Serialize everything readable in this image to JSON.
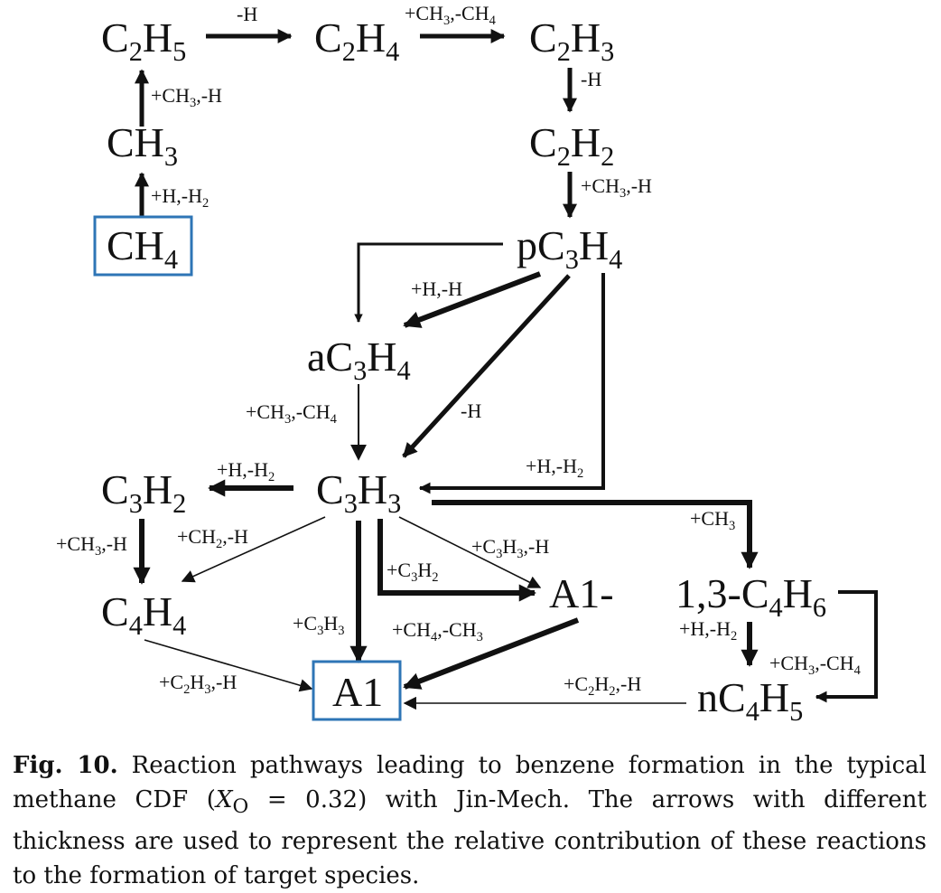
{
  "species": {
    "c2h5": {
      "base": "C",
      "s1": "2",
      "m": "H",
      "s2": "5"
    },
    "c2h4": {
      "base": "C",
      "s1": "2",
      "m": "H",
      "s2": "4"
    },
    "c2h3": {
      "base": "C",
      "s1": "2",
      "m": "H",
      "s2": "3"
    },
    "ch3": {
      "base": "CH",
      "s1": "3"
    },
    "c2h2": {
      "base": "C",
      "s1": "2",
      "m": "H",
      "s2": "2"
    },
    "ch4": {
      "base": "CH",
      "s1": "4"
    },
    "pc3h4": {
      "base": "pC",
      "s1": "3",
      "m": "H",
      "s2": "4"
    },
    "ac3h4": {
      "base": "aC",
      "s1": "3",
      "m": "H",
      "s2": "4"
    },
    "c3h2": {
      "base": "C",
      "s1": "3",
      "m": "H",
      "s2": "2"
    },
    "c3h3": {
      "base": "C",
      "s1": "3",
      "m": "H",
      "s2": "3"
    },
    "c4h4": {
      "base": "C",
      "s1": "4",
      "m": "H",
      "s2": "4"
    },
    "a1minus": {
      "base": "A1-"
    },
    "c4h6": {
      "base": "1,3-C",
      "s1": "4",
      "m": "H",
      "s2": "6"
    },
    "a1": {
      "base": "A1"
    },
    "nc4h5": {
      "base": "nC",
      "s1": "4",
      "m": "H",
      "s2": "5"
    }
  },
  "labels": {
    "c2h5_c2h4": {
      "parts": [
        "-H"
      ]
    },
    "c2h4_c2h3": {
      "parts": [
        "+CH",
        "3",
        ",-CH",
        "4"
      ]
    },
    "ch3_c2h5": {
      "parts": [
        "+CH",
        "3",
        ",-H"
      ]
    },
    "c2h3_c2h2": {
      "parts": [
        "-H"
      ]
    },
    "ch4_ch3": {
      "parts": [
        "+H,-H",
        "2"
      ]
    },
    "c2h2_pc3h4": {
      "parts": [
        "+CH",
        "3",
        ",-H"
      ]
    },
    "pc3h4_ac3h4": {
      "parts": [
        "+H,-H"
      ]
    },
    "ac3h4_c3h3": {
      "parts": [
        "+CH",
        "3",
        ",-CH",
        "4"
      ]
    },
    "pc3h4_c3h3_diag": {
      "parts": [
        "-H"
      ]
    },
    "c3h3_c3h2": {
      "parts": [
        "+H,-H",
        "2"
      ]
    },
    "pc3h4_c3h3_loop": {
      "parts": [
        "+H,-H",
        "2"
      ]
    },
    "c3h3_c4h6": {
      "parts": [
        "+CH",
        "3"
      ]
    },
    "c3h2_c4h4": {
      "parts": [
        "+CH",
        "3",
        ",-H"
      ]
    },
    "c3h3_c4h4": {
      "parts": [
        "+CH",
        "2",
        ",-H"
      ]
    },
    "c3h3_a1minus_thin": {
      "parts": [
        "+C",
        "3",
        "H",
        "3",
        ",-H"
      ]
    },
    "c3h3_a1minus": {
      "parts": [
        "+C",
        "3",
        "H",
        "2"
      ]
    },
    "c3h3_a1": {
      "parts": [
        "+C",
        "3",
        "H",
        "3"
      ]
    },
    "a1minus_a1": {
      "parts": [
        "+CH",
        "4",
        ",-CH",
        "3"
      ]
    },
    "c4h6_nc4h5": {
      "parts": [
        "+H,-H",
        "2"
      ]
    },
    "c4h6_nc4h5_loop": {
      "parts": [
        "+CH",
        "3",
        ",-CH",
        "4"
      ]
    },
    "c4h4_a1": {
      "parts": [
        "+C",
        "2",
        "H",
        "3",
        ",-H"
      ]
    },
    "nc4h5_a1": {
      "parts": [
        "+C",
        "2",
        "H",
        "2",
        ",-H"
      ]
    }
  },
  "caption": {
    "fig": "Fig. 10.",
    "text1": " Reaction pathways leading to benzene formation in the typical methane CDF (",
    "xo": "X",
    "xo_sub": "O",
    "eq": " = 0.32",
    "text2": ") with Jin-Mech. The arrows with different thickness are used to represent the relative contribution of these reactions to the formation of target species."
  },
  "colors": {
    "box": "#2e75b6",
    "ink": "#111111"
  }
}
